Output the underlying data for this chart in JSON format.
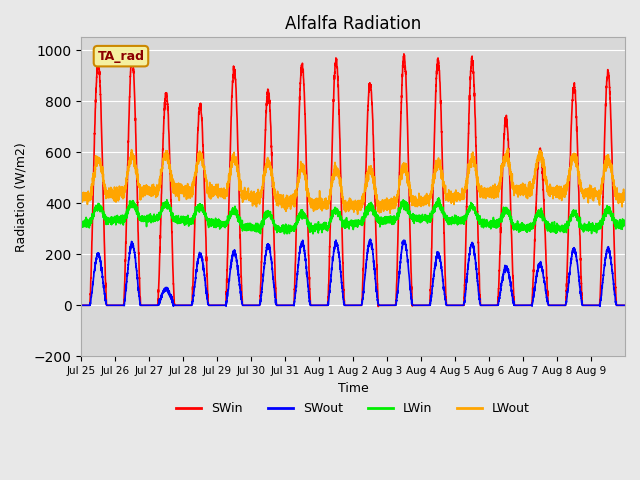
{
  "title": "Alfalfa Radiation",
  "xlabel": "Time",
  "ylabel": "Radiation (W/m2)",
  "ylim": [
    -200,
    1050
  ],
  "background_color": "#e8e8e8",
  "plot_bg_color": "#d8d8d8",
  "legend_label": "TA_rad",
  "colors": {
    "SWin": "#ff0000",
    "SWout": "#0000ff",
    "LWin": "#00ee00",
    "LWout": "#ffa500"
  },
  "xtick_labels": [
    "Jul 25",
    "Jul 26",
    "Jul 27",
    "Jul 28",
    "Jul 29",
    "Jul 30",
    "Jul 31",
    "Aug 1",
    "Aug 2",
    "Aug 3",
    "Aug 4",
    "Aug 5",
    "Aug 6",
    "Aug 7",
    "Aug 8",
    "Aug 9"
  ],
  "n_days": 16,
  "SWin_peaks": [
    950,
    970,
    830,
    780,
    925,
    840,
    940,
    960,
    870,
    970,
    960,
    960,
    730,
    610,
    860,
    910
  ],
  "SWout_peaks": [
    200,
    240,
    65,
    200,
    210,
    235,
    245,
    245,
    250,
    250,
    200,
    240,
    150,
    160,
    220,
    220
  ],
  "LWin_base": 320,
  "LWout_base": 420
}
